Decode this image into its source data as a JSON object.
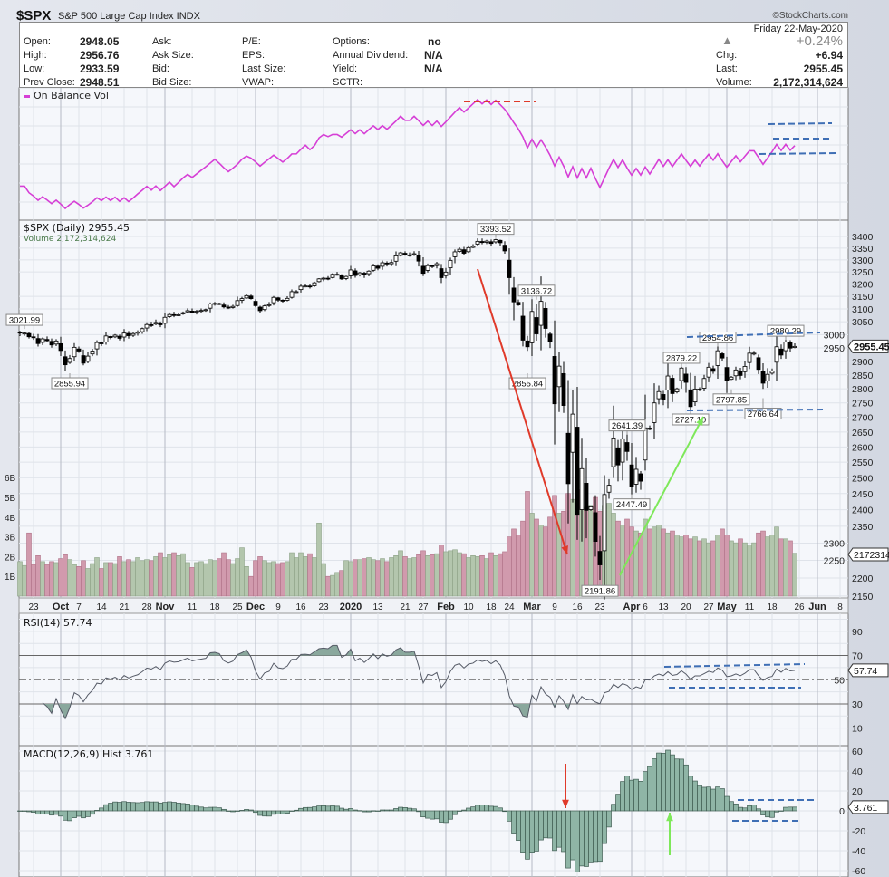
{
  "header": {
    "symbol": "$SPX",
    "name": "S&P 500 Large Cap Index INDX",
    "copyright": "©StockCharts.com",
    "date": "Friday  22-May-2020",
    "change_pct": "+0.24%",
    "fields": {
      "open_label": "Open:",
      "open": "2948.05",
      "high_label": "High:",
      "high": "2956.76",
      "low_label": "Low:",
      "low": "2933.59",
      "prev_label": "Prev Close:",
      "prev": "2948.51",
      "ask_label": "Ask:",
      "ask_size_label": "Ask Size:",
      "bid_label": "Bid:",
      "bid_size_label": "Bid Size:",
      "pe_label": "P/E:",
      "eps_label": "EPS:",
      "last_size_label": "Last Size:",
      "vwap_label": "VWAP:",
      "options_label": "Options:",
      "options": "no",
      "dividend_label": "Annual Dividend:",
      "dividend": "N/A",
      "yield_label": "Yield:",
      "yield": "N/A",
      "sctr_label": "SCTR:",
      "chg_label": "Chg:",
      "chg": "+6.94",
      "last_label": "Last:",
      "last": "2955.45",
      "volume_label": "Volume:",
      "volume": "2,172,314,624"
    }
  },
  "colors": {
    "up_volume": "#b3c6ad",
    "down_volume": "#d19aad",
    "obv": "#d63fd6",
    "hist": "#8fb5a6",
    "annotation_blue": "#3f6fb5",
    "annotation_red": "#e03a2a",
    "annotation_green": "#7ee85a"
  },
  "chart_data": {
    "type": "candlestick",
    "title": "$SPX (Daily) 2955.45",
    "volume_title": "Volume 2,172,314,624",
    "obv_title": "On Balance Vol",
    "rsi_title": "RSI(14) 57.74",
    "macd_title": "MACD(12,26,9) Hist 3.761",
    "price_scale": "log",
    "ylim": [
      2150,
      3400
    ],
    "price_ticks": [
      3400,
      3350,
      3300,
      3250,
      3200,
      3150,
      3100,
      3050,
      3000,
      2950,
      2900,
      2850,
      2800,
      2750,
      2700,
      2650,
      2600,
      2550,
      2500,
      2450,
      2400,
      2350,
      2300,
      2250,
      2200,
      2150
    ],
    "volume_ticks": [
      {
        "v": 6,
        "label": "6B"
      },
      {
        "v": 5,
        "label": "5B"
      },
      {
        "v": 4,
        "label": "4B"
      },
      {
        "v": 3,
        "label": "3B"
      },
      {
        "v": 2,
        "label": "2B"
      },
      {
        "v": 1,
        "label": "1B"
      }
    ],
    "rsi_ticks": [
      90,
      70,
      50,
      30,
      10
    ],
    "macd_ticks": [
      60,
      40,
      20,
      0,
      -20,
      -40,
      -60
    ],
    "last_price_tag": "2955.45",
    "last_volume_tag": "2172314",
    "last_rsi_tag": "57.74",
    "last_macd_tag": "3.761",
    "x_labels": [
      {
        "label": "23",
        "bar": 3
      },
      {
        "label": "Oct",
        "bar": 9,
        "bold": true
      },
      {
        "label": "7",
        "bar": 13
      },
      {
        "label": "14",
        "bar": 18
      },
      {
        "label": "21",
        "bar": 23
      },
      {
        "label": "28",
        "bar": 28
      },
      {
        "label": "Nov",
        "bar": 32,
        "bold": true
      },
      {
        "label": "11",
        "bar": 38
      },
      {
        "label": "18",
        "bar": 43
      },
      {
        "label": "25",
        "bar": 48
      },
      {
        "label": "Dec",
        "bar": 52,
        "bold": true
      },
      {
        "label": "9",
        "bar": 57
      },
      {
        "label": "16",
        "bar": 62
      },
      {
        "label": "23",
        "bar": 67
      },
      {
        "label": "2020",
        "bar": 73,
        "bold": true
      },
      {
        "label": "13",
        "bar": 79
      },
      {
        "label": "21",
        "bar": 85
      },
      {
        "label": "27",
        "bar": 89
      },
      {
        "label": "Feb",
        "bar": 94,
        "bold": true
      },
      {
        "label": "10",
        "bar": 99
      },
      {
        "label": "18",
        "bar": 104
      },
      {
        "label": "24",
        "bar": 108
      },
      {
        "label": "Mar",
        "bar": 113,
        "bold": true
      },
      {
        "label": "9",
        "bar": 118
      },
      {
        "label": "16",
        "bar": 123
      },
      {
        "label": "23",
        "bar": 128
      },
      {
        "label": "Apr",
        "bar": 135,
        "bold": true
      },
      {
        "label": "6",
        "bar": 138
      },
      {
        "label": "13",
        "bar": 142
      },
      {
        "label": "20",
        "bar": 147
      },
      {
        "label": "27",
        "bar": 152
      },
      {
        "label": "May",
        "bar": 156,
        "bold": true
      },
      {
        "label": "11",
        "bar": 161
      },
      {
        "label": "18",
        "bar": 166
      },
      {
        "label": "26",
        "bar": 172
      },
      {
        "label": "Jun",
        "bar": 176,
        "bold": true
      },
      {
        "label": "8",
        "bar": 181
      }
    ],
    "price_labels": [
      {
        "text": "3021.99",
        "bar": 1,
        "value": 3021.99,
        "pos": "above"
      },
      {
        "text": "2855.94",
        "bar": 11,
        "value": 2855.94,
        "pos": "below"
      },
      {
        "text": "3393.52",
        "bar": 105,
        "value": 3393.52,
        "pos": "above"
      },
      {
        "text": "3136.72",
        "bar": 114,
        "value": 3136.72,
        "pos": "above"
      },
      {
        "text": "2855.84",
        "bar": 112,
        "value": 2855.84,
        "pos": "below"
      },
      {
        "text": "2191.86",
        "bar": 128,
        "value": 2191.86,
        "pos": "below"
      },
      {
        "text": "2447.49",
        "bar": 135,
        "value": 2447.49,
        "pos": "below"
      },
      {
        "text": "2641.39",
        "bar": 134,
        "value": 2641.39,
        "pos": "above"
      },
      {
        "text": "2727.10",
        "bar": 148,
        "value": 2727.1,
        "pos": "below"
      },
      {
        "text": "2879.22",
        "bar": 146,
        "value": 2879.22,
        "pos": "above"
      },
      {
        "text": "2954.86",
        "bar": 154,
        "value": 2954.86,
        "pos": "above"
      },
      {
        "text": "2797.85",
        "bar": 157,
        "value": 2797.85,
        "pos": "below"
      },
      {
        "text": "2766.64",
        "bar": 164,
        "value": 2766.64,
        "pos": "below"
      },
      {
        "text": "2980.29",
        "bar": 169,
        "value": 2980.29,
        "pos": "above"
      }
    ],
    "close": [
      3006,
      3006,
      2992,
      2991,
      2966,
      2984,
      2977,
      2961,
      2976,
      2940,
      2887,
      2910,
      2952,
      2938,
      2893,
      2919,
      2938,
      2970,
      2966,
      2995,
      2989,
      2998,
      2986,
      3006,
      2996,
      3004,
      3010,
      3023,
      3039,
      3036,
      3047,
      3038,
      3067,
      3078,
      3075,
      3077,
      3085,
      3093,
      3087,
      3091,
      3094,
      3097,
      3120,
      3122,
      3120,
      3108,
      3104,
      3110,
      3133,
      3141,
      3153,
      3141,
      3113,
      3093,
      3112,
      3117,
      3146,
      3135,
      3133,
      3142,
      3169,
      3169,
      3191,
      3192,
      3191,
      3205,
      3221,
      3224,
      3223,
      3240,
      3240,
      3221,
      3231,
      3258,
      3235,
      3246,
      3237,
      3253,
      3275,
      3265,
      3288,
      3283,
      3289,
      3317,
      3330,
      3321,
      3321,
      3326,
      3295,
      3244,
      3276,
      3273,
      3284,
      3226,
      3249,
      3298,
      3334,
      3345,
      3328,
      3352,
      3358,
      3379,
      3374,
      3380,
      3370,
      3386,
      3373,
      3338,
      3226,
      3128,
      3116,
      2979,
      2954,
      3090,
      3003,
      3130,
      3024,
      2972,
      2747,
      2882,
      2741,
      2481,
      2711,
      2386,
      2529,
      2398,
      2409,
      2305,
      2237,
      2447,
      2476,
      2630,
      2541,
      2627,
      2585,
      2471,
      2527,
      2489,
      2664,
      2659,
      2750,
      2790,
      2762,
      2846,
      2783,
      2800,
      2875,
      2823,
      2737,
      2799,
      2798,
      2837,
      2878,
      2863,
      2939,
      2912,
      2831,
      2842,
      2868,
      2848,
      2881,
      2930,
      2930,
      2870,
      2820,
      2852,
      2864,
      2954,
      2923,
      2972,
      2949,
      2955.45
    ],
    "volume_billions": [
      1.75,
      1.55,
      3.2,
      1.6,
      2.05,
      1.75,
      1.6,
      1.75,
      1.7,
      1.9,
      2.1,
      1.85,
      1.6,
      1.5,
      1.8,
      1.4,
      1.65,
      1.95,
      1.4,
      1.7,
      1.7,
      1.65,
      2.0,
      1.75,
      1.85,
      1.75,
      1.95,
      1.8,
      1.85,
      1.8,
      2.0,
      2.2,
      1.95,
      2.1,
      2.2,
      2.05,
      2.15,
      1.7,
      1.45,
      1.7,
      1.75,
      1.65,
      1.85,
      1.8,
      1.9,
      2.2,
      1.85,
      1.65,
      1.9,
      2.45,
      1.5,
      1.0,
      1.8,
      2.0,
      1.8,
      1.7,
      1.75,
      1.65,
      1.7,
      1.75,
      2.2,
      1.95,
      2.2,
      2.0,
      2.15,
      1.95,
      3.7,
      1.65,
      1.0,
      1.05,
      1.2,
      1.3,
      1.8,
      1.75,
      1.85,
      1.85,
      1.9,
      1.95,
      1.85,
      1.8,
      1.9,
      1.75,
      1.95,
      2.05,
      2.3,
      2.0,
      1.9,
      1.95,
      2.1,
      2.3,
      2.05,
      2.1,
      2.15,
      2.6,
      2.25,
      2.3,
      2.35,
      2.2,
      2.15,
      1.95,
      2.05,
      2.0,
      2.05,
      1.9,
      2.2,
      2.05,
      2.15,
      2.25,
      3.0,
      3.4,
      3.1,
      3.8,
      5.3,
      4.2,
      3.9,
      3.6,
      3.5,
      4.0,
      5.1,
      4.2,
      4.3,
      5.2,
      4.9,
      5.4,
      4.5,
      4.4,
      4.6,
      5.0,
      4.3,
      4.6,
      4.7,
      4.2,
      3.8,
      3.6,
      3.9,
      3.5,
      3.3,
      3.2,
      3.9,
      3.4,
      3.5,
      3.6,
      3.4,
      3.2,
      3.3,
      3.1,
      3.0,
      3.1,
      2.9,
      3.0,
      2.8,
      2.9,
      2.7,
      2.8,
      3.1,
      3.4,
      3.1,
      2.8,
      2.7,
      2.9,
      2.7,
      2.6,
      2.7,
      3.2,
      3.3,
      3.0,
      3.1,
      3.5,
      2.9,
      2.9,
      2.8,
      2.17
    ]
  }
}
